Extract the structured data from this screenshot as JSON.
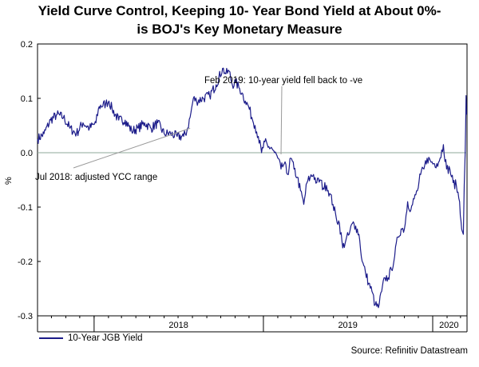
{
  "title_line1": "Yield Curve Control, Keeping 10- Year Bond Yield at About 0%-",
  "title_line2": "is BOJ's Key Monetary Measure",
  "source": "Source: Refinitiv Datastream",
  "chart_data": {
    "type": "line",
    "ylabel": "%",
    "ylim": [
      -0.3,
      0.2
    ],
    "yticks": [
      0.2,
      0.1,
      0.0,
      -0.1,
      -0.2,
      -0.3
    ],
    "ytick_labels": [
      "0.2",
      "0.1",
      "0.0",
      "-0.1",
      "-0.2",
      "-0.3"
    ],
    "xlim": [
      "2017-09-01",
      "2020-03-15"
    ],
    "x_dividers": [
      "2018-01-01",
      "2019-01-01",
      "2020-01-01"
    ],
    "x_labels": [
      {
        "label": "2018",
        "at": "2018-07-02"
      },
      {
        "label": "2019",
        "at": "2019-07-02"
      },
      {
        "label": "2020",
        "at": "2020-02-05"
      }
    ],
    "grid": false,
    "zero_line": true,
    "legend_position": "bottom-left",
    "series": [
      {
        "name": "10-Year JGB Yield",
        "color": "#1c1c8a",
        "points": [
          [
            "2017-09-01",
            0.025
          ],
          [
            "2017-09-15",
            0.035
          ],
          [
            "2017-09-29",
            0.06
          ],
          [
            "2017-10-13",
            0.07
          ],
          [
            "2017-10-27",
            0.065
          ],
          [
            "2017-11-10",
            0.045
          ],
          [
            "2017-11-24",
            0.035
          ],
          [
            "2017-12-08",
            0.055
          ],
          [
            "2017-12-22",
            0.045
          ],
          [
            "2018-01-05",
            0.055
          ],
          [
            "2018-01-12",
            0.085
          ],
          [
            "2018-01-26",
            0.09
          ],
          [
            "2018-02-02",
            0.095
          ],
          [
            "2018-02-09",
            0.08
          ],
          [
            "2018-02-23",
            0.06
          ],
          [
            "2018-03-09",
            0.06
          ],
          [
            "2018-03-23",
            0.04
          ],
          [
            "2018-04-06",
            0.045
          ],
          [
            "2018-04-20",
            0.055
          ],
          [
            "2018-05-04",
            0.045
          ],
          [
            "2018-05-18",
            0.055
          ],
          [
            "2018-06-01",
            0.035
          ],
          [
            "2018-06-15",
            0.035
          ],
          [
            "2018-06-29",
            0.03
          ],
          [
            "2018-07-13",
            0.03
          ],
          [
            "2018-07-20",
            0.04
          ],
          [
            "2018-07-27",
            0.065
          ],
          [
            "2018-08-03",
            0.1
          ],
          [
            "2018-08-10",
            0.095
          ],
          [
            "2018-08-24",
            0.1
          ],
          [
            "2018-09-07",
            0.105
          ],
          [
            "2018-09-21",
            0.125
          ],
          [
            "2018-10-05",
            0.155
          ],
          [
            "2018-10-12",
            0.145
          ],
          [
            "2018-10-19",
            0.15
          ],
          [
            "2018-10-26",
            0.125
          ],
          [
            "2018-11-02",
            0.13
          ],
          [
            "2018-11-09",
            0.12
          ],
          [
            "2018-11-16",
            0.11
          ],
          [
            "2018-11-23",
            0.095
          ],
          [
            "2018-11-30",
            0.085
          ],
          [
            "2018-12-07",
            0.065
          ],
          [
            "2018-12-14",
            0.05
          ],
          [
            "2018-12-21",
            0.03
          ],
          [
            "2018-12-28",
            0.0
          ],
          [
            "2019-01-04",
            0.02
          ],
          [
            "2019-01-11",
            0.01
          ],
          [
            "2019-01-18",
            0.01
          ],
          [
            "2019-01-25",
            0.0
          ],
          [
            "2019-02-01",
            -0.01
          ],
          [
            "2019-02-08",
            -0.03
          ],
          [
            "2019-02-15",
            -0.02
          ],
          [
            "2019-02-22",
            -0.04
          ],
          [
            "2019-03-01",
            -0.01
          ],
          [
            "2019-03-08",
            -0.03
          ],
          [
            "2019-03-15",
            -0.045
          ],
          [
            "2019-03-22",
            -0.07
          ],
          [
            "2019-03-29",
            -0.095
          ],
          [
            "2019-04-05",
            -0.055
          ],
          [
            "2019-04-12",
            -0.045
          ],
          [
            "2019-04-19",
            -0.04
          ],
          [
            "2019-04-26",
            -0.055
          ],
          [
            "2019-05-03",
            -0.05
          ],
          [
            "2019-05-10",
            -0.065
          ],
          [
            "2019-05-17",
            -0.06
          ],
          [
            "2019-05-24",
            -0.075
          ],
          [
            "2019-05-31",
            -0.095
          ],
          [
            "2019-06-07",
            -0.12
          ],
          [
            "2019-06-14",
            -0.13
          ],
          [
            "2019-06-21",
            -0.175
          ],
          [
            "2019-06-28",
            -0.16
          ],
          [
            "2019-07-05",
            -0.15
          ],
          [
            "2019-07-12",
            -0.13
          ],
          [
            "2019-07-19",
            -0.135
          ],
          [
            "2019-07-26",
            -0.15
          ],
          [
            "2019-08-02",
            -0.2
          ],
          [
            "2019-08-09",
            -0.22
          ],
          [
            "2019-08-16",
            -0.24
          ],
          [
            "2019-08-23",
            -0.255
          ],
          [
            "2019-08-30",
            -0.28
          ],
          [
            "2019-09-06",
            -0.285
          ],
          [
            "2019-09-13",
            -0.255
          ],
          [
            "2019-09-20",
            -0.23
          ],
          [
            "2019-09-27",
            -0.23
          ],
          [
            "2019-10-04",
            -0.215
          ],
          [
            "2019-10-11",
            -0.19
          ],
          [
            "2019-10-18",
            -0.155
          ],
          [
            "2019-10-25",
            -0.14
          ],
          [
            "2019-11-01",
            -0.14
          ],
          [
            "2019-11-08",
            -0.09
          ],
          [
            "2019-11-15",
            -0.105
          ],
          [
            "2019-11-22",
            -0.085
          ],
          [
            "2019-11-29",
            -0.07
          ],
          [
            "2019-12-06",
            -0.04
          ],
          [
            "2019-12-13",
            -0.03
          ],
          [
            "2019-12-20",
            -0.01
          ],
          [
            "2019-12-27",
            -0.015
          ],
          [
            "2020-01-03",
            -0.02
          ],
          [
            "2020-01-10",
            -0.02
          ],
          [
            "2020-01-17",
            -0.01
          ],
          [
            "2020-01-24",
            0.015
          ],
          [
            "2020-01-31",
            -0.03
          ],
          [
            "2020-02-07",
            -0.03
          ],
          [
            "2020-02-14",
            -0.055
          ],
          [
            "2020-02-21",
            -0.06
          ],
          [
            "2020-02-28",
            -0.09
          ],
          [
            "2020-03-02",
            -0.125
          ],
          [
            "2020-03-05",
            -0.145
          ],
          [
            "2020-03-07",
            -0.15
          ],
          [
            "2020-03-09",
            -0.06
          ],
          [
            "2020-03-11",
            0.0
          ],
          [
            "2020-03-12",
            0.05
          ],
          [
            "2020-03-13",
            0.105
          ],
          [
            "2020-03-14",
            0.07
          ]
        ]
      }
    ],
    "annotations": [
      {
        "text": "Jul 2018: adjusted YCC range",
        "points_to": [
          "2018-07-27",
          0.045
        ]
      },
      {
        "text": "Feb 2019: 10-year yield fell back to -ve",
        "points_to": [
          "2019-02-08",
          -0.003
        ]
      }
    ]
  }
}
